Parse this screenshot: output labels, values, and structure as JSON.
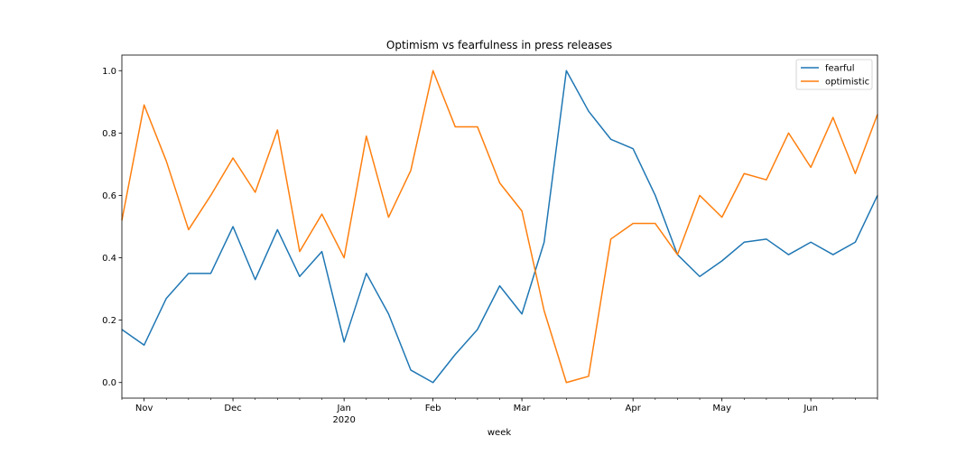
{
  "chart_data": {
    "type": "line",
    "title": "Optimism vs fearfulness in press releases",
    "xlabel": "week",
    "ylabel": "",
    "ylim": [
      -0.05,
      1.05
    ],
    "yticks": [
      "0.0",
      "0.2",
      "0.4",
      "0.6",
      "0.8",
      "1.0"
    ],
    "xticks": [
      {
        "label": "Nov",
        "index": 1,
        "sublabel": ""
      },
      {
        "label": "Dec",
        "index": 5,
        "sublabel": ""
      },
      {
        "label": "Jan",
        "index": 10,
        "sublabel": "2020"
      },
      {
        "label": "Feb",
        "index": 14,
        "sublabel": ""
      },
      {
        "label": "Mar",
        "index": 18,
        "sublabel": ""
      },
      {
        "label": "Apr",
        "index": 23,
        "sublabel": ""
      },
      {
        "label": "May",
        "index": 27,
        "sublabel": ""
      },
      {
        "label": "Jun",
        "index": 31,
        "sublabel": ""
      }
    ],
    "x": [
      "2019-10-27",
      "2019-11-03",
      "2019-11-10",
      "2019-11-17",
      "2019-11-24",
      "2019-12-01",
      "2019-12-08",
      "2019-12-15",
      "2019-12-22",
      "2019-12-29",
      "2020-01-05",
      "2020-01-12",
      "2020-01-19",
      "2020-01-26",
      "2020-02-02",
      "2020-02-09",
      "2020-02-16",
      "2020-02-23",
      "2020-03-01",
      "2020-03-08",
      "2020-03-15",
      "2020-03-22",
      "2020-03-29",
      "2020-04-05",
      "2020-04-12",
      "2020-04-19",
      "2020-04-26",
      "2020-05-03",
      "2020-05-10",
      "2020-05-17",
      "2020-05-24",
      "2020-05-31",
      "2020-06-07",
      "2020-06-14",
      "2020-06-21"
    ],
    "series": [
      {
        "name": "fearful",
        "color": "#1f77b4",
        "values": [
          0.17,
          0.12,
          0.27,
          0.35,
          0.35,
          0.5,
          0.33,
          0.49,
          0.34,
          0.42,
          0.13,
          0.35,
          0.22,
          0.04,
          0.0,
          0.09,
          0.17,
          0.31,
          0.22,
          0.45,
          1.0,
          0.87,
          0.78,
          0.75,
          0.6,
          0.41,
          0.34,
          0.39,
          0.45,
          0.46,
          0.41,
          0.45,
          0.41,
          0.45,
          0.6
        ]
      },
      {
        "name": "optimistic",
        "color": "#ff7f0e",
        "values": [
          0.52,
          0.89,
          0.71,
          0.49,
          0.6,
          0.72,
          0.61,
          0.81,
          0.42,
          0.54,
          0.4,
          0.79,
          0.53,
          0.68,
          1.0,
          0.82,
          0.82,
          0.64,
          0.55,
          0.23,
          0.0,
          0.02,
          0.46,
          0.51,
          0.51,
          0.41,
          0.6,
          0.53,
          0.67,
          0.65,
          0.8,
          0.69,
          0.85,
          0.67,
          0.86
        ]
      }
    ],
    "grid": false,
    "legend": "top-right"
  }
}
